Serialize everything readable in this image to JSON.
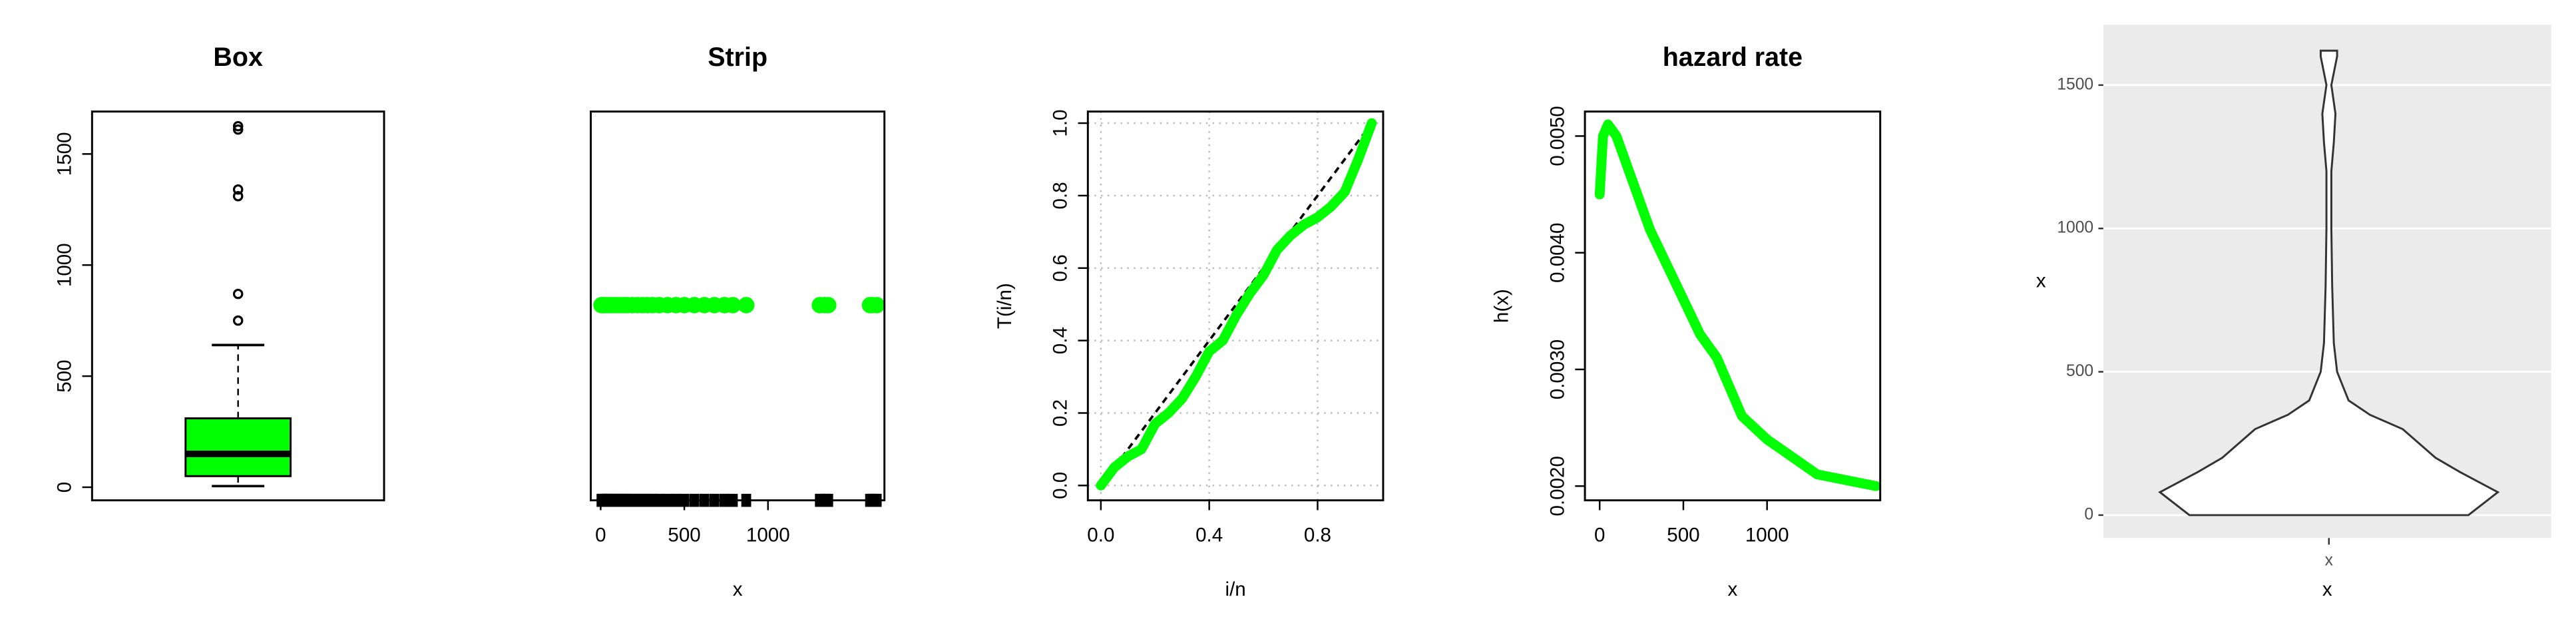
{
  "chart_data": [
    {
      "type": "box",
      "title": "Box",
      "color": "#00ff00",
      "ylim": [
        -59,
        1691
      ],
      "yticks": [
        0,
        500,
        1000,
        1500
      ],
      "min": 5,
      "q1": 50,
      "median": 150,
      "q3": 310,
      "max": 640,
      "outliers": [
        750,
        870,
        1310,
        1340,
        1610,
        1625
      ]
    },
    {
      "type": "strip",
      "title": "Strip",
      "xlabel": "x",
      "color": "#00ff00",
      "xlim": [
        -59,
        1696
      ],
      "xticks": [
        0,
        500,
        1000
      ],
      "values": [
        5,
        15,
        30,
        45,
        60,
        80,
        100,
        120,
        140,
        160,
        190,
        220,
        250,
        280,
        310,
        350,
        400,
        450,
        500,
        560,
        620,
        680,
        740,
        790,
        870,
        1310,
        1340,
        1360,
        1610,
        1625,
        1650
      ]
    },
    {
      "type": "line",
      "xlabel": "i/n",
      "ylabel": "T(i/n)",
      "color": "#00ff00",
      "grid": true,
      "reference_line": true,
      "xlim": [
        -0.048,
        1.042
      ],
      "ylim": [
        -0.041,
        1.032
      ],
      "xticks": [
        {
          "value": 0,
          "label": "0.0"
        },
        0.4,
        0.8
      ],
      "yticks": [
        {
          "value": 0,
          "label": "0.0"
        },
        0.2,
        0.4,
        0.6,
        0.8,
        {
          "value": 1,
          "label": "1.0"
        }
      ],
      "x": [
        0,
        0.05,
        0.1,
        0.15,
        0.2,
        0.25,
        0.3,
        0.35,
        0.4,
        0.45,
        0.5,
        0.55,
        0.6,
        0.65,
        0.7,
        0.75,
        0.8,
        0.85,
        0.9,
        0.95,
        1
      ],
      "values": [
        0,
        0.05,
        0.08,
        0.1,
        0.17,
        0.2,
        0.24,
        0.3,
        0.37,
        0.4,
        0.47,
        0.53,
        0.58,
        0.65,
        0.69,
        0.72,
        0.74,
        0.77,
        0.81,
        0.9,
        1
      ]
    },
    {
      "type": "line",
      "title": "hazard rate",
      "xlabel": "x",
      "ylabel": "h(x)",
      "color": "#00ff00",
      "xlim": [
        -88,
        1676
      ],
      "ylim": [
        0.001878,
        0.00521
      ],
      "xticks": [
        0,
        500,
        1000
      ],
      "yticks": [
        {
          "value": 0.002,
          "label": "0.0020"
        },
        {
          "value": 0.003,
          "label": "0.0030"
        },
        {
          "value": 0.004,
          "label": "0.0040"
        },
        {
          "value": 0.005,
          "label": "0.0050"
        }
      ],
      "x": [
        0,
        20,
        50,
        100,
        200,
        300,
        400,
        500,
        600,
        700,
        850,
        1000,
        1300,
        1650
      ],
      "values": [
        0.0045,
        0.005,
        0.0051,
        0.005,
        0.0046,
        0.0042,
        0.0039,
        0.0036,
        0.0033,
        0.0031,
        0.0026,
        0.0024,
        0.0021,
        0.002
      ]
    },
    {
      "type": "violin",
      "xlabel": "x",
      "ylabel": "x",
      "categories": [
        "x"
      ],
      "ylim": [
        -80,
        1711
      ],
      "yticks": [
        0,
        500,
        1000,
        1500
      ],
      "y": [
        0,
        80,
        150,
        200,
        250,
        300,
        350,
        400,
        500,
        600,
        800,
        1000,
        1200,
        1300,
        1400,
        1500,
        1600,
        1620
      ],
      "width": [
        85,
        103,
        80,
        65,
        55,
        45,
        25,
        12,
        5,
        3,
        2,
        1.5,
        1.5,
        3,
        4,
        1.5,
        5,
        5
      ]
    }
  ]
}
